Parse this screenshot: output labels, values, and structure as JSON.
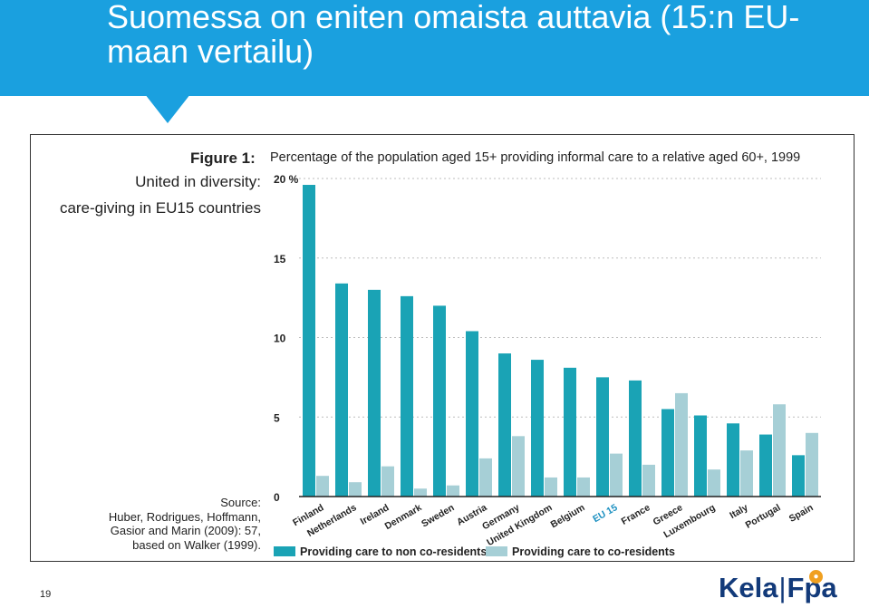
{
  "slide": {
    "title": "Suomessa on eniten omaista auttavia (15:n EU-maan vertailu)",
    "page_number": "19",
    "logo": {
      "left": "Kela",
      "right": "Fpa"
    }
  },
  "figure": {
    "label": "Figure 1:",
    "caption": "Percentage of the population aged 15+ providing informal care to a relative aged 60+, 1999",
    "subtitle_line1": "United in diversity:",
    "subtitle_line2": "care-giving in EU15 countries",
    "source_lines": [
      "Source:",
      "Huber, Rodrigues, Hoffmann,",
      "Gasior and Marin (2009): 57,",
      "based on Walker (1999)."
    ]
  },
  "colors": {
    "header": "#1aa0df",
    "series_non_coresidents": "#1aa3b5",
    "series_coresidents": "#a6cfd6",
    "eu15_label": "#1a8fc0"
  },
  "chart_data": {
    "type": "bar",
    "categories": [
      "Finland",
      "Netherlands",
      "Ireland",
      "Denmark",
      "Sweden",
      "Austria",
      "Germany",
      "United Kingdom",
      "Belgium",
      "EU 15",
      "France",
      "Greece",
      "Luxembourg",
      "Italy",
      "Portugal",
      "Spain"
    ],
    "series": [
      {
        "name": "Providing care to non co-residents",
        "values": [
          19.6,
          13.4,
          13.0,
          12.6,
          12.0,
          10.4,
          9.0,
          8.6,
          8.1,
          7.5,
          7.3,
          5.5,
          5.1,
          4.6,
          3.9,
          2.6
        ]
      },
      {
        "name": "Providing care to co-residents",
        "values": [
          1.3,
          0.9,
          1.9,
          0.5,
          0.7,
          2.4,
          3.8,
          1.2,
          1.2,
          2.7,
          2.0,
          6.5,
          1.7,
          2.9,
          5.8,
          4.0
        ]
      }
    ],
    "yticks": [
      "0",
      "5",
      "10",
      "15",
      "20 %"
    ],
    "ylim": [
      0,
      20
    ],
    "grid": true,
    "legend": "bottom",
    "highlight_category": "EU 15"
  }
}
